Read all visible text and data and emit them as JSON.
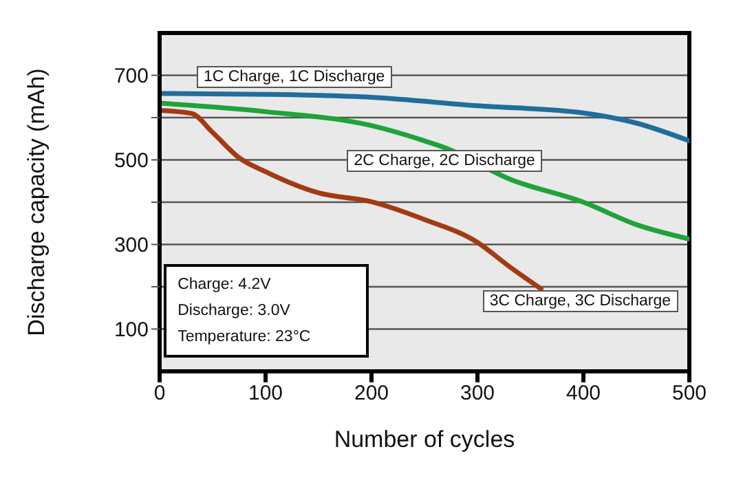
{
  "chart_data": {
    "type": "line",
    "xlabel": "Number of cycles",
    "ylabel": "Discharge capacity (mAh)",
    "xlim": [
      0,
      500
    ],
    "xticks": [
      0,
      100,
      200,
      300,
      400,
      500
    ],
    "ylim": [
      0,
      800
    ],
    "yticks": [
      100,
      {
        "value": 200,
        "label": null
      },
      300,
      {
        "value": 400,
        "label": null
      },
      500,
      {
        "value": 600,
        "label": null
      },
      700
    ],
    "grid": "y",
    "legend": false,
    "marker": "none",
    "line_style": "solid",
    "series": [
      {
        "name": "1C Charge, 1C Discharge",
        "color": "#1f6e9c",
        "x": [
          0,
          100,
          200,
          300,
          400,
          450,
          500
        ],
        "values": [
          657,
          655,
          648,
          628,
          611,
          587,
          545
        ]
      },
      {
        "name": "2C Charge, 2C Discharge",
        "color": "#1fa33a",
        "x": [
          0,
          100,
          200,
          250,
          270,
          330,
          400,
          450,
          500
        ],
        "values": [
          634,
          614,
          581,
          545,
          528,
          455,
          400,
          347,
          313
        ]
      },
      {
        "name": "3C Charge, 3C Discharge",
        "color": "#a33a12",
        "x": [
          0,
          30,
          50,
          75,
          100,
          150,
          200,
          250,
          300,
          330,
          360
        ],
        "values": [
          617,
          610,
          565,
          505,
          472,
          422,
          401,
          359,
          305,
          248,
          195
        ]
      }
    ],
    "annotations": [
      "Charge: 4.2V",
      "Discharge: 3.0V",
      "Temperature: 23°C"
    ]
  }
}
